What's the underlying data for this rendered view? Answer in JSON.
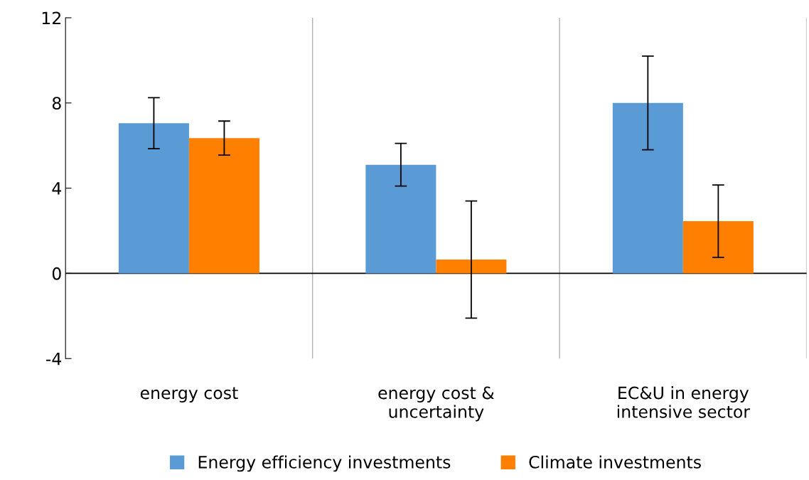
{
  "chart_data": {
    "type": "bar",
    "categories": [
      "energy cost",
      "energy cost &\nuncertainty",
      "EC&U in energy\nintensive sector"
    ],
    "series": [
      {
        "name": "Energy efficiency investments",
        "color": "#5b9bd5",
        "values": [
          7.05,
          5.1,
          8.0
        ],
        "errors": [
          1.2,
          1.0,
          2.2
        ]
      },
      {
        "name": "Climate investments",
        "color": "#ff7f00",
        "values": [
          6.35,
          0.65,
          2.45
        ],
        "errors": [
          0.8,
          2.75,
          1.7
        ]
      }
    ],
    "ylim": [
      -4,
      12
    ],
    "yticks": [
      {
        "value": -4,
        "label": "-4"
      },
      0,
      4,
      8,
      12
    ],
    "grid": "x",
    "legend": "bottom"
  }
}
